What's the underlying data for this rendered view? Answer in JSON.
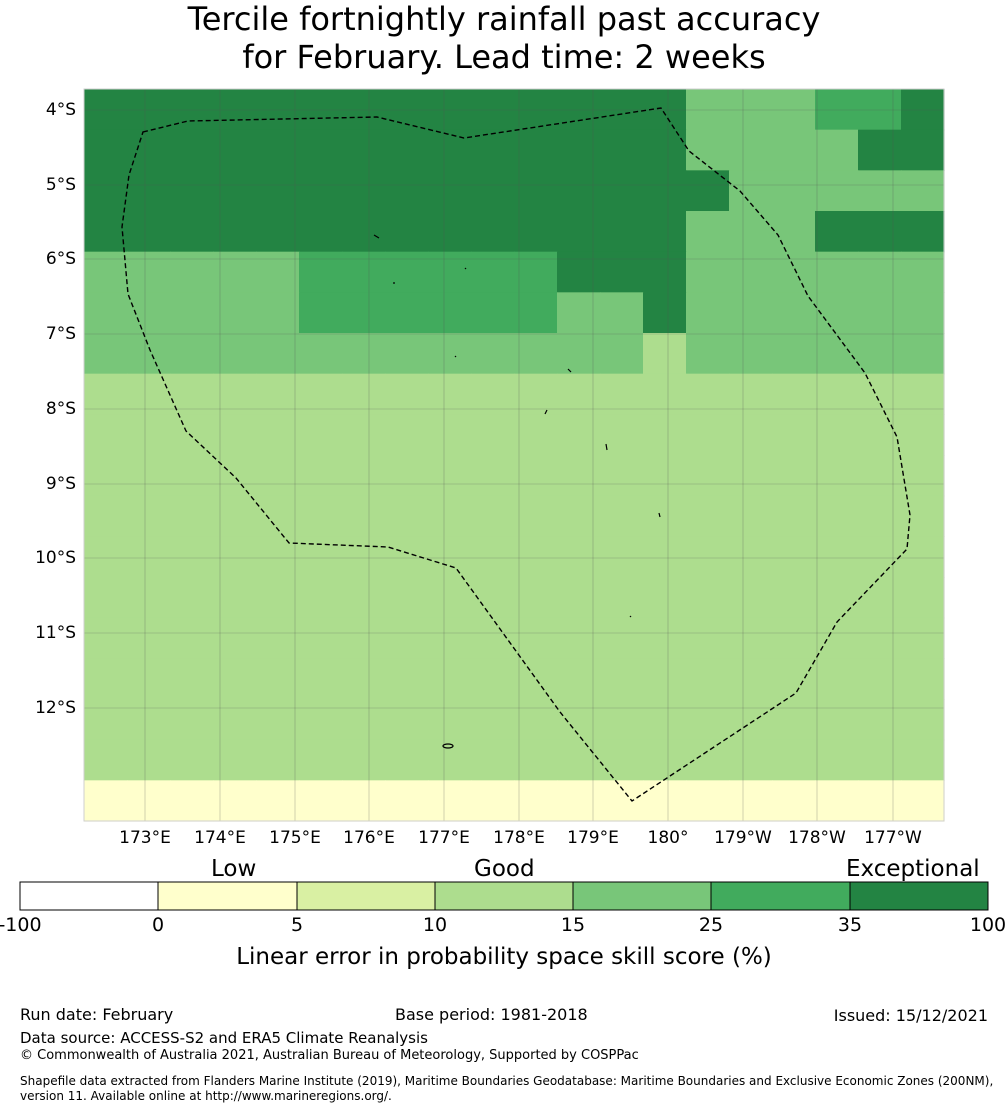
{
  "title": {
    "line1": "Tercile fortnightly rainfall past accuracy",
    "line2": "for February. Lead time: 2 weeks"
  },
  "map": {
    "lat_labels": [
      "4°S",
      "5°S",
      "6°S",
      "7°S",
      "8°S",
      "9°S",
      "10°S",
      "11°S",
      "12°S"
    ],
    "lon_labels": [
      "173°E",
      "174°E",
      "175°E",
      "176°E",
      "177°E",
      "178°E",
      "179°E",
      "180°",
      "179°W",
      "178°W",
      "177°W"
    ],
    "category_colors": [
      "#ffffff",
      "#ffffcc",
      "#d9f0a3",
      "#addd8e",
      "#78c679",
      "#41ab5d",
      "#238443"
    ],
    "grid_levels": [
      "66666666666666444556",
      "66666666666666444466",
      "66666666666666644444",
      "66666666666666444666",
      "44444555555666444444",
      "44444555555446444444",
      "44444444444443444444",
      "33333333333333333333",
      "33333333333333333333",
      "33333333333333333333",
      "33333333333333333333",
      "33333333333333333333",
      "33333333333333333333",
      "33333333333333333333",
      "33333333333333333333",
      "33333333333333333333",
      "33333333333333333333",
      "11111111111111111111"
    ]
  },
  "colorbar": {
    "categories": [
      "Low",
      "Good",
      "Exceptional"
    ],
    "ticks": [
      "-100",
      "0",
      "5",
      "10",
      "15",
      "25",
      "35",
      "100"
    ],
    "colors": [
      "#ffffff",
      "#ffffcc",
      "#d9f0a3",
      "#addd8e",
      "#78c679",
      "#41ab5d",
      "#238443"
    ],
    "label": "Linear error in probability space skill score (%)"
  },
  "footer": {
    "run_date": "Run date: February",
    "base_period": "Base period: 1981-2018",
    "issued": "Issued: 15/12/2021",
    "data_source": "Data source: ACCESS-S2 and ERA5 Climate Reanalysis",
    "copyright": "© Commonwealth of Australia 2021, Australian Bureau of Meteorology, Supported by COSPPac",
    "shapefile_line1": "Shapefile data extracted from Flanders Marine Institute (2019), Maritime Boundaries Geodatabase: Maritime Boundaries and Exclusive Economic Zones (200NM),",
    "shapefile_line2": "version 11. Available online at http://www.marineregions.org/."
  }
}
